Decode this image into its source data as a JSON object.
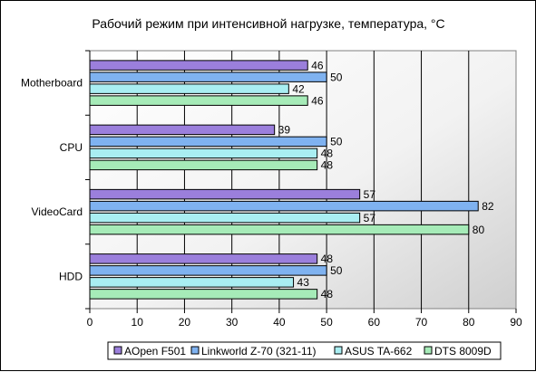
{
  "chart_data": {
    "type": "bar",
    "orientation": "horizontal",
    "title": "Рабочий режим при интенсивной нагрузке, температура, °С",
    "xlabel": "",
    "ylabel": "",
    "categories": [
      "Motherboard",
      "CPU",
      "VideoCard",
      "HDD"
    ],
    "series": [
      {
        "name": "AOpen F501",
        "values": [
          46,
          39,
          57,
          48
        ],
        "color": "#9b7fdc"
      },
      {
        "name": "Linkworld Z-70 (321-11)",
        "values": [
          50,
          50,
          82,
          50
        ],
        "color": "#7fb2f0"
      },
      {
        "name": "ASUS TA-662",
        "values": [
          42,
          48,
          57,
          43
        ],
        "color": "#a9eef2"
      },
      {
        "name": "DTS 8009D",
        "values": [
          46,
          48,
          80,
          48
        ],
        "color": "#a6ebb8"
      }
    ],
    "xlim": [
      0,
      90
    ],
    "xticks": [
      0,
      10,
      20,
      30,
      40,
      50,
      60,
      70,
      80,
      90
    ],
    "grid": true,
    "legend_position": "bottom",
    "plot_background": "gradient white to gray"
  }
}
